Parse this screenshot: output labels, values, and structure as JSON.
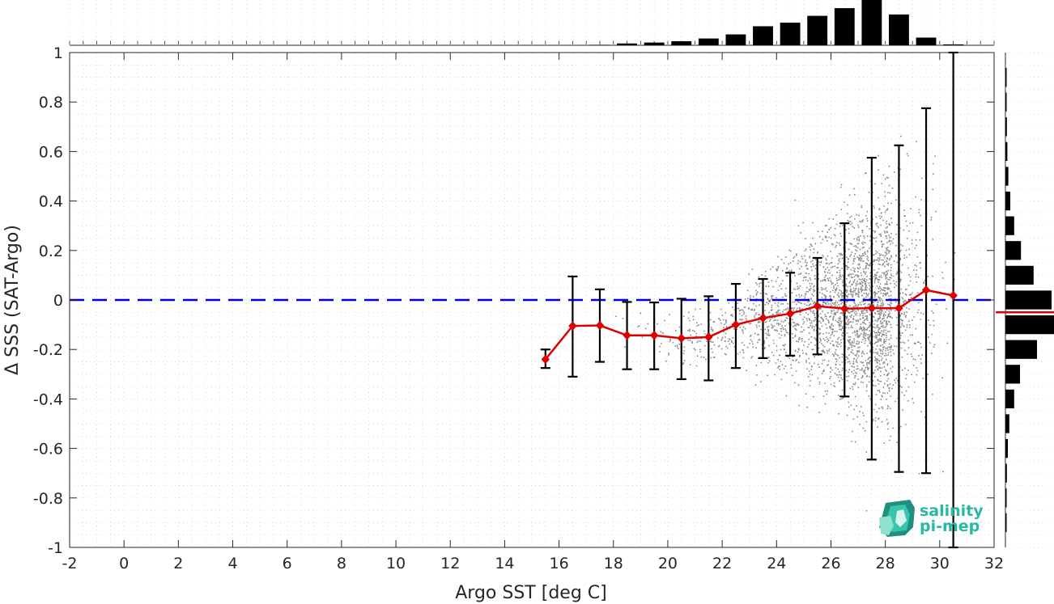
{
  "chart_data": {
    "type": "scatter",
    "title": "",
    "xlabel": "Argo SST [deg C]",
    "ylabel": "Δ SSS (SAT-Argo)",
    "xlim": [
      -2,
      32
    ],
    "ylim": [
      -1,
      1
    ],
    "x_ticks": [
      -2,
      0,
      2,
      4,
      6,
      8,
      10,
      12,
      14,
      16,
      18,
      20,
      22,
      24,
      26,
      28,
      30,
      32
    ],
    "y_ticks": [
      1,
      0.8,
      0.6,
      0.4,
      0.2,
      0,
      -0.2,
      -0.4,
      -0.6,
      -0.8,
      -1
    ],
    "grid": true,
    "reference_line": {
      "y": 0,
      "color": "#0000dd",
      "style": "dashed"
    },
    "scatter_color": "#8a8a8a",
    "binned_mean": {
      "color": "#dd0000",
      "x": [
        15.5,
        16.5,
        17.5,
        18.5,
        19.5,
        20.5,
        21.5,
        22.5,
        23.5,
        24.5,
        25.5,
        26.5,
        27.5,
        28.5,
        29.5,
        30.5
      ],
      "y": [
        -0.24,
        -0.105,
        -0.103,
        -0.143,
        -0.143,
        -0.155,
        -0.15,
        -0.1,
        -0.073,
        -0.055,
        -0.025,
        -0.035,
        -0.033,
        -0.033,
        0.04,
        0.018
      ],
      "err_lo": [
        -0.275,
        -0.31,
        -0.25,
        -0.28,
        -0.28,
        -0.32,
        -0.325,
        -0.275,
        -0.235,
        -0.225,
        -0.22,
        -0.39,
        -0.645,
        -0.695,
        -0.7,
        -1
      ],
      "err_hi": [
        -0.2,
        0.095,
        0.043,
        -0.008,
        -0.01,
        0.005,
        0.015,
        0.065,
        0.085,
        0.11,
        0.17,
        0.31,
        0.575,
        0.625,
        0.775,
        1
      ]
    },
    "x_histogram": {
      "bin_centers": [
        17.5,
        18.5,
        19.5,
        20.5,
        21.5,
        22.5,
        23.5,
        24.5,
        25.5,
        26.5,
        27.5,
        28.5,
        29.5,
        30.5
      ],
      "relative_counts": [
        0.01,
        0.04,
        0.06,
        0.09,
        0.15,
        0.24,
        0.42,
        0.5,
        0.65,
        0.82,
        1.0,
        0.68,
        0.17,
        0.02
      ]
    },
    "y_histogram": {
      "bin_centers": [
        0.9,
        0.8,
        0.7,
        0.6,
        0.5,
        0.4,
        0.3,
        0.2,
        0.1,
        0.0,
        -0.1,
        -0.2,
        -0.3,
        -0.4,
        -0.5,
        -0.6,
        -0.7,
        -0.8,
        -0.9
      ],
      "relative_counts": [
        0.02,
        0.02,
        0.03,
        0.04,
        0.06,
        0.1,
        0.18,
        0.32,
        0.58,
        0.95,
        1.0,
        0.65,
        0.3,
        0.18,
        0.08,
        0.05,
        0.03,
        0.02,
        0.01
      ],
      "median_line": {
        "y": -0.05,
        "color": "#dd0000"
      }
    }
  },
  "logo": {
    "line1": "salinity",
    "line2": "pi-mep"
  }
}
